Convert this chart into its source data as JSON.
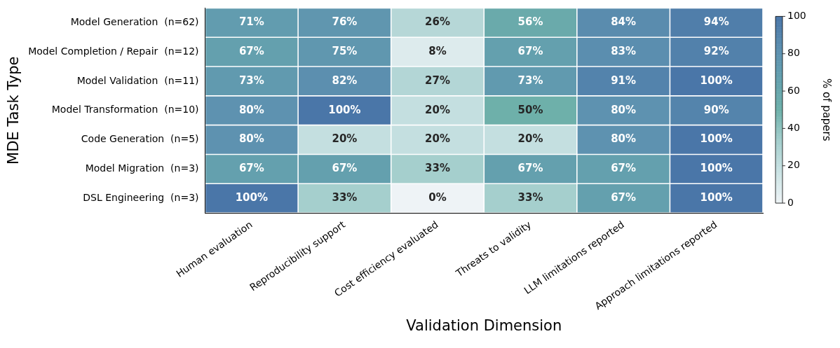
{
  "chart_data": {
    "type": "heatmap",
    "xlabel": "Validation Dimension",
    "ylabel": "MDE Task Type",
    "clabel": "% of papers",
    "categories": [
      "Human evaluation",
      "Reproducibility support",
      "Cost efficiency evaluated",
      "Threats to validity",
      "LLM limitations reported",
      "Approach limitations reported"
    ],
    "y_categories": [
      "Model Generation  (n=62)",
      "Model Completion / Repair  (n=12)",
      "Model Validation  (n=11)",
      "Model Transformation  (n=10)",
      "Code Generation  (n=5)",
      "Model Migration  (n=3)",
      "DSL Engineering  (n=3)"
    ],
    "cells": [
      [
        71,
        76,
        26,
        56,
        84,
        94
      ],
      [
        67,
        75,
        8,
        67,
        83,
        92
      ],
      [
        73,
        82,
        27,
        73,
        91,
        100
      ],
      [
        80,
        100,
        20,
        50,
        80,
        90
      ],
      [
        80,
        20,
        20,
        20,
        80,
        100
      ],
      [
        67,
        67,
        33,
        67,
        67,
        100
      ],
      [
        100,
        33,
        0,
        33,
        67,
        100
      ]
    ],
    "cell_labels": [
      [
        "71%",
        "76%",
        "26%",
        "56%",
        "84%",
        "94%"
      ],
      [
        "67%",
        "75%",
        "8%",
        "67%",
        "83%",
        "92%"
      ],
      [
        "73%",
        "82%",
        "27%",
        "73%",
        "91%",
        "100%"
      ],
      [
        "80%",
        "100%",
        "20%",
        "50%",
        "80%",
        "90%"
      ],
      [
        "80%",
        "20%",
        "20%",
        "20%",
        "80%",
        "100%"
      ],
      [
        "67%",
        "67%",
        "33%",
        "67%",
        "67%",
        "100%"
      ],
      [
        "100%",
        "33%",
        "0%",
        "33%",
        "67%",
        "100%"
      ]
    ],
    "clim": [
      0,
      100
    ],
    "cticks": [
      0,
      20,
      40,
      60,
      80,
      100
    ]
  }
}
